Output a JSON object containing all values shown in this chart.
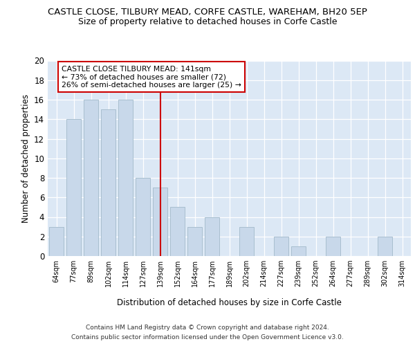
{
  "title_line1": "CASTLE CLOSE, TILBURY MEAD, CORFE CASTLE, WAREHAM, BH20 5EP",
  "title_line2": "Size of property relative to detached houses in Corfe Castle",
  "xlabel": "Distribution of detached houses by size in Corfe Castle",
  "ylabel": "Number of detached properties",
  "categories": [
    "64sqm",
    "77sqm",
    "89sqm",
    "102sqm",
    "114sqm",
    "127sqm",
    "139sqm",
    "152sqm",
    "164sqm",
    "177sqm",
    "189sqm",
    "202sqm",
    "214sqm",
    "227sqm",
    "239sqm",
    "252sqm",
    "264sqm",
    "277sqm",
    "289sqm",
    "302sqm",
    "314sqm"
  ],
  "values": [
    3,
    14,
    16,
    15,
    16,
    8,
    7,
    5,
    3,
    4,
    0,
    3,
    0,
    2,
    1,
    0,
    2,
    0,
    0,
    2,
    0
  ],
  "bar_color": "#c8d8ea",
  "bar_edge_color": "#a8bece",
  "vline_x_index": 6,
  "vline_color": "#cc0000",
  "annotation_text": "CASTLE CLOSE TILBURY MEAD: 141sqm\n← 73% of detached houses are smaller (72)\n26% of semi-detached houses are larger (25) →",
  "annotation_box_color": "#ffffff",
  "annotation_box_edge_color": "#cc0000",
  "ylim": [
    0,
    20
  ],
  "yticks": [
    0,
    2,
    4,
    6,
    8,
    10,
    12,
    14,
    16,
    18,
    20
  ],
  "footer_line1": "Contains HM Land Registry data © Crown copyright and database right 2024.",
  "footer_line2": "Contains public sector information licensed under the Open Government Licence v3.0.",
  "fig_bg_color": "#ffffff",
  "plot_bg_color": "#dce8f5"
}
